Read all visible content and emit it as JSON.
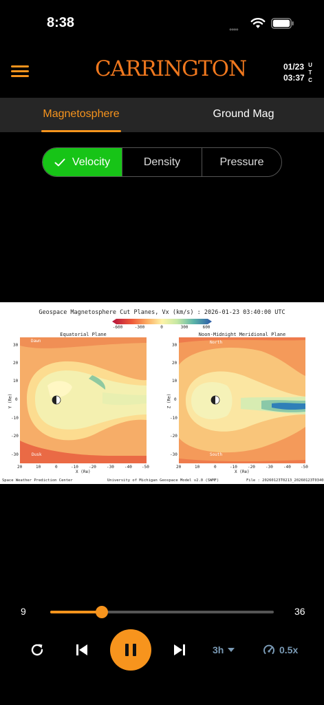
{
  "status_bar": {
    "time": "8:38",
    "signal_dots": "••••"
  },
  "header": {
    "logo": "CARRINGTON",
    "utc_date": "01/23",
    "utc_time": "03:37",
    "utc_label": "U\nT\nC"
  },
  "tabs": [
    {
      "label": "Magnetosphere",
      "active": true
    },
    {
      "label": "Ground Mag",
      "active": false
    }
  ],
  "segments": [
    {
      "label": "Velocity",
      "active": true
    },
    {
      "label": "Density",
      "active": false
    },
    {
      "label": "Pressure",
      "active": false
    }
  ],
  "plot": {
    "title": "Geospace Magnetosphere Cut Planes, Vx (km/s) : 2026-01-23 03:40:00 UTC",
    "colorbar_ticks": [
      "-600",
      "-300",
      "0",
      "300",
      "600"
    ],
    "left_panel": {
      "title": "Equatorial Plane",
      "dawn": "Dawn",
      "dusk": "Dusk",
      "ylabel": "Y (Re)",
      "xlabel": "X (Re)",
      "yticks": [
        "30",
        "20",
        "10",
        "0",
        "-10",
        "-20",
        "-30"
      ],
      "xticks": [
        "20",
        "10",
        "0",
        "-10",
        "-20",
        "-30",
        "-40",
        "-50"
      ]
    },
    "right_panel": {
      "title": "Noon-Midnight Meridional Plane",
      "north": "North",
      "south": "South",
      "ylabel": "Z (Re)",
      "xlabel": "X (Re)",
      "yticks": [
        "30",
        "20",
        "10",
        "0",
        "-10",
        "-20",
        "-30"
      ],
      "xticks": [
        "20",
        "10",
        "0",
        "-10",
        "-20",
        "-30",
        "-40",
        "-50"
      ]
    },
    "footer_left": "Space Weather Prediction Center",
    "footer_mid": "University of Michigan Geospace Model v2.0 (SWMF)",
    "footer_right": "File : 20260123T0213_20260123T0340"
  },
  "playback": {
    "range_min": "9",
    "range_max": "36",
    "position_fraction": 0.23,
    "time_range": "3h",
    "speed": "0.5x"
  },
  "colors": {
    "accent": "#f7941d",
    "active_segment": "#17c417",
    "secondary_control": "#7a9ab5"
  }
}
